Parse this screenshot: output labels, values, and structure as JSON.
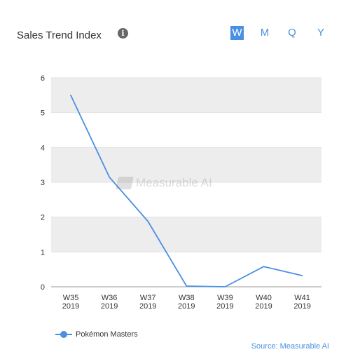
{
  "header": {
    "title": "Sales Trend Index",
    "info_icon": "info-icon"
  },
  "period_tabs": [
    {
      "label": "W",
      "active": true
    },
    {
      "label": "M",
      "active": false
    },
    {
      "label": "Q",
      "active": false
    },
    {
      "label": "Y",
      "active": false
    }
  ],
  "watermark": {
    "text": "Measurable AI"
  },
  "legend": {
    "series_name": "Pokémon Masters"
  },
  "source": "Source: Measurable AI",
  "colors": {
    "series": "#4a90e2",
    "band": "#ededed",
    "grid": "#e2e2e2",
    "axis": "#999999"
  },
  "chart_data": {
    "type": "line",
    "x": [
      "W35 2019",
      "W36 2019",
      "W37 2019",
      "W38 2019",
      "W39 2019",
      "W40 2019",
      "W41 2019"
    ],
    "x_ticks": [
      [
        "W35",
        "2019"
      ],
      [
        "W36",
        "2019"
      ],
      [
        "W37",
        "2019"
      ],
      [
        "W38",
        "2019"
      ],
      [
        "W39",
        "2019"
      ],
      [
        "W40",
        "2019"
      ],
      [
        "W41",
        "2019"
      ]
    ],
    "series": [
      {
        "name": "Pokémon Masters",
        "values": [
          5.5,
          3.15,
          1.88,
          0.02,
          0.0,
          0.58,
          0.32
        ]
      }
    ],
    "ylim": [
      0,
      6
    ],
    "y_ticks": [
      0,
      1,
      2,
      3,
      4,
      5,
      6
    ],
    "grid": true,
    "legend_position": "bottom-left"
  }
}
